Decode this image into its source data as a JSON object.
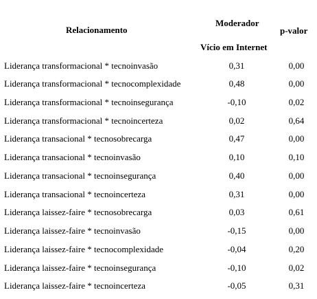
{
  "header": {
    "relationship": "Relacionamento",
    "moderator": "Moderador",
    "moderator_sub": "Vício em Internet",
    "p_value": "p-valor"
  },
  "rows": [
    {
      "relationship": "Liderança transformacional * tecnoinvasão",
      "moderator": "0,31",
      "p_value": "0,00"
    },
    {
      "relationship": "Liderança transformacional * tecnocomplexidade",
      "moderator": "0,48",
      "p_value": "0,00"
    },
    {
      "relationship": "Liderança transformacional * tecnoinsegurança",
      "moderator": "-0,10",
      "p_value": "0,02"
    },
    {
      "relationship": "Liderança transformacional * tecnoincerteza",
      "moderator": "0,02",
      "p_value": "0,64"
    },
    {
      "relationship": "Liderança transacional * tecnosobrecarga",
      "moderator": "0,47",
      "p_value": "0,00"
    },
    {
      "relationship": "Liderança transacional * tecnoinvasão",
      "moderator": "0,10",
      "p_value": "0,10"
    },
    {
      "relationship": "Liderança transacional * tecnoinsegurança",
      "moderator": "0,40",
      "p_value": "0,00"
    },
    {
      "relationship": "Liderança transacional * tecnoincerteza",
      "moderator": "0,31",
      "p_value": "0,00"
    },
    {
      "relationship": "Liderança laissez-faire * tecnosobrecarga",
      "moderator": "0,03",
      "p_value": "0,61"
    },
    {
      "relationship": "Liderança laissez-faire * tecnoinvasão",
      "moderator": "-0,15",
      "p_value": "0,00"
    },
    {
      "relationship": "Liderança laissez-faire * tecnocomplexidade",
      "moderator": "-0,04",
      "p_value": "0,20"
    },
    {
      "relationship": "Liderança laissez-faire * tecnoinsegurança",
      "moderator": "-0,10",
      "p_value": "0,02"
    },
    {
      "relationship": "Liderança laissez-faire * tecnoincerteza",
      "moderator": "-0,05",
      "p_value": "0,31"
    }
  ]
}
